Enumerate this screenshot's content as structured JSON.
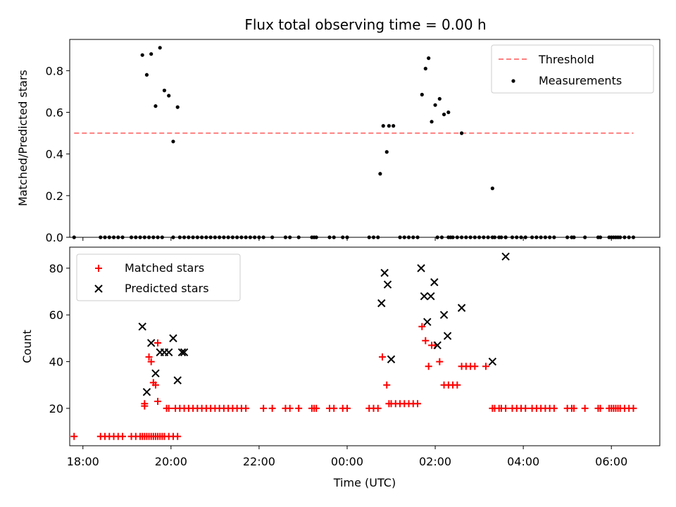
{
  "figure": {
    "title": "Flux total observing time = 0.00 h"
  },
  "chart_data": [
    {
      "type": "scatter",
      "ylabel": "Matched/Predicted stars",
      "xlim": [
        -6.3,
        7.1
      ],
      "ylim": [
        0,
        0.95
      ],
      "y_ticks": [
        0.0,
        0.2,
        0.4,
        0.6,
        0.8
      ],
      "y_tick_labels": [
        "0.0",
        "0.2",
        "0.4",
        "0.6",
        "0.8"
      ],
      "legend": {
        "position": "top-right",
        "entries": [
          {
            "label": "Threshold",
            "style": "dashed-line",
            "color": "#ff7f7f"
          },
          {
            "label": "Measurements",
            "style": "dot",
            "color": "#000000"
          }
        ]
      },
      "threshold": {
        "name": "Threshold",
        "value": 0.5,
        "x_range": [
          -6.2,
          6.5
        ],
        "color": "#ff7f7f"
      },
      "series": [
        {
          "name": "Measurements",
          "marker": "dot",
          "color": "#000000",
          "x": [
            -6.2,
            -5.6,
            -5.5,
            -5.4,
            -5.3,
            -5.2,
            -5.1,
            -4.9,
            -4.8,
            -4.7,
            -4.6,
            -4.5,
            -4.4,
            -4.3,
            -4.2,
            -3.95,
            -3.8,
            -3.7,
            -3.6,
            -3.5,
            -3.4,
            -3.3,
            -3.2,
            -3.1,
            -3.0,
            -2.9,
            -2.8,
            -2.7,
            -2.6,
            -2.5,
            -2.4,
            -2.3,
            -2.2,
            -2.1,
            -2.0,
            -1.9,
            -1.7,
            -1.4,
            -1.3,
            -1.1,
            -0.8,
            -0.75,
            -0.7,
            -0.4,
            -0.3,
            -0.1,
            0.0,
            0.5,
            0.6,
            0.7,
            1.2,
            1.3,
            1.4,
            1.5,
            1.6,
            2.05,
            2.15,
            2.3,
            2.35,
            2.4,
            2.5,
            2.6,
            2.7,
            2.8,
            2.9,
            3.0,
            3.1,
            3.2,
            3.3,
            3.35,
            3.45,
            3.5,
            3.6,
            3.75,
            3.85,
            3.95,
            4.05,
            4.2,
            4.3,
            4.4,
            4.5,
            4.6,
            4.7,
            5.0,
            5.1,
            5.15,
            5.4,
            5.7,
            5.75,
            5.95,
            6.0,
            6.05,
            6.1,
            6.15,
            6.2,
            6.3,
            6.4,
            6.5,
            -4.65,
            -4.55,
            -4.45,
            -4.35,
            -4.25,
            -4.15,
            -4.05,
            -3.95,
            -3.85,
            0.75,
            0.82,
            0.9,
            0.95,
            1.05,
            1.7,
            1.78,
            1.85,
            1.92,
            2.0,
            2.1,
            2.2,
            2.3,
            2.6,
            3.3,
            3.6
          ],
          "y": [
            0,
            0,
            0,
            0,
            0,
            0,
            0,
            0,
            0,
            0,
            0,
            0,
            0,
            0,
            0,
            0,
            0,
            0,
            0,
            0,
            0,
            0,
            0,
            0,
            0,
            0,
            0,
            0,
            0,
            0,
            0,
            0,
            0,
            0,
            0,
            0,
            0,
            0,
            0,
            0,
            0,
            0,
            0,
            0,
            0,
            0,
            0,
            0,
            0,
            0,
            0,
            0,
            0,
            0,
            0,
            0,
            0,
            0,
            0,
            0,
            0,
            0,
            0,
            0,
            0,
            0,
            0,
            0,
            0,
            0,
            0,
            0,
            0,
            0,
            0,
            0,
            0,
            0,
            0,
            0,
            0,
            0,
            0,
            0,
            0,
            0,
            0,
            0,
            0,
            0,
            0,
            0,
            0,
            0,
            0,
            0,
            0,
            0,
            0.875,
            0.78,
            0.88,
            0.63,
            0.91,
            0.705,
            0.68,
            0.46,
            0.625,
            0.305,
            0.535,
            0.41,
            0.535,
            0.535,
            0.685,
            0.81,
            0.86,
            0.555,
            0.635,
            0.665,
            0.59,
            0.6,
            0.5,
            0.235,
            0.0
          ]
        }
      ]
    },
    {
      "type": "scatter",
      "xlabel": "Time (UTC)",
      "ylabel": "Count",
      "xlim": [
        -6.3,
        7.1
      ],
      "ylim": [
        4,
        89
      ],
      "x_ticks": [
        -6,
        -4,
        -2,
        0,
        2,
        4,
        6
      ],
      "x_tick_labels": [
        "18:00",
        "20:00",
        "22:00",
        "00:00",
        "02:00",
        "04:00",
        "06:00"
      ],
      "y_ticks": [
        20,
        40,
        60,
        80
      ],
      "y_tick_labels": [
        "20",
        "40",
        "60",
        "80"
      ],
      "legend": {
        "position": "top-left",
        "entries": [
          {
            "label": "Matched stars",
            "style": "plus",
            "color": "#ff0000"
          },
          {
            "label": "Predicted stars",
            "style": "cross",
            "color": "#000000"
          }
        ]
      },
      "series": [
        {
          "name": "Matched stars",
          "marker": "plus",
          "color": "#ff0000",
          "x": [
            -6.2,
            -5.6,
            -5.5,
            -5.4,
            -5.3,
            -5.2,
            -5.1,
            -4.9,
            -4.8,
            -4.7,
            -4.6,
            -4.5,
            -4.4,
            -4.3,
            -4.2,
            -4.65,
            -4.55,
            -4.45,
            -4.35,
            -4.25,
            -4.15,
            -4.05,
            -3.95,
            -3.85,
            -4.3,
            -4.6,
            -4.5,
            -4.6,
            -4.45,
            -4.4,
            -4.35,
            -4.3,
            -4.1,
            -4.05,
            -3.9,
            -3.8,
            -3.7,
            -3.6,
            -3.5,
            -3.4,
            -3.3,
            -3.2,
            -3.1,
            -3.0,
            -2.9,
            -2.8,
            -2.7,
            -2.6,
            -2.5,
            -2.4,
            -2.3,
            -1.9,
            -1.7,
            -1.4,
            -1.3,
            -1.1,
            -0.8,
            -0.75,
            -0.7,
            -0.4,
            -0.3,
            -0.1,
            0.0,
            0.5,
            0.6,
            0.7,
            0.8,
            0.9,
            0.95,
            1.0,
            1.1,
            1.2,
            1.3,
            1.4,
            1.5,
            1.6,
            1.7,
            1.78,
            1.85,
            1.92,
            2.0,
            2.1,
            2.2,
            2.3,
            2.4,
            2.5,
            2.6,
            2.7,
            2.8,
            2.9,
            3.15,
            3.3,
            3.35,
            3.45,
            3.5,
            3.6,
            3.75,
            3.85,
            3.95,
            4.05,
            4.2,
            4.3,
            4.4,
            4.5,
            4.6,
            4.7,
            5.0,
            5.1,
            5.15,
            5.4,
            5.7,
            5.75,
            5.95,
            6.0,
            6.05,
            6.1,
            6.15,
            6.2,
            6.3,
            6.4,
            6.5
          ],
          "y": [
            8,
            8,
            8,
            8,
            8,
            8,
            8,
            8,
            8,
            8,
            8,
            8,
            8,
            8,
            8,
            8,
            8,
            8,
            8,
            8,
            8,
            8,
            8,
            8,
            48,
            21,
            42,
            22,
            40,
            31,
            30,
            23,
            20,
            20,
            20,
            20,
            20,
            20,
            20,
            20,
            20,
            20,
            20,
            20,
            20,
            20,
            20,
            20,
            20,
            20,
            20,
            20,
            20,
            20,
            20,
            20,
            20,
            20,
            20,
            20,
            20,
            20,
            20,
            20,
            20,
            20,
            42,
            30,
            22,
            22,
            22,
            22,
            22,
            22,
            22,
            22,
            55,
            49,
            38,
            47,
            47,
            40,
            30,
            30,
            30,
            30,
            38,
            38,
            38,
            38,
            38,
            20,
            20,
            20,
            20,
            20,
            20,
            20,
            20,
            20,
            20,
            20,
            20,
            20,
            20,
            20,
            20,
            20,
            20,
            20,
            20,
            20,
            20,
            20,
            20,
            20,
            20,
            20,
            20,
            20,
            20
          ]
        },
        {
          "name": "Predicted stars",
          "marker": "cross",
          "color": "#000000",
          "x": [
            -4.65,
            -4.55,
            -4.45,
            -4.35,
            -4.25,
            -4.15,
            -4.05,
            -3.95,
            -3.85,
            -3.75,
            -3.7,
            0.78,
            0.85,
            0.92,
            1.0,
            1.68,
            1.75,
            1.82,
            1.9,
            1.98,
            2.05,
            2.2,
            2.28,
            2.6,
            3.3,
            3.6
          ],
          "y": [
            55,
            27,
            48,
            35,
            44,
            44,
            44,
            50,
            32,
            44,
            44,
            65,
            78,
            73,
            41,
            80,
            68,
            57,
            68,
            74,
            47,
            60,
            51,
            63,
            40,
            85
          ]
        }
      ]
    }
  ]
}
